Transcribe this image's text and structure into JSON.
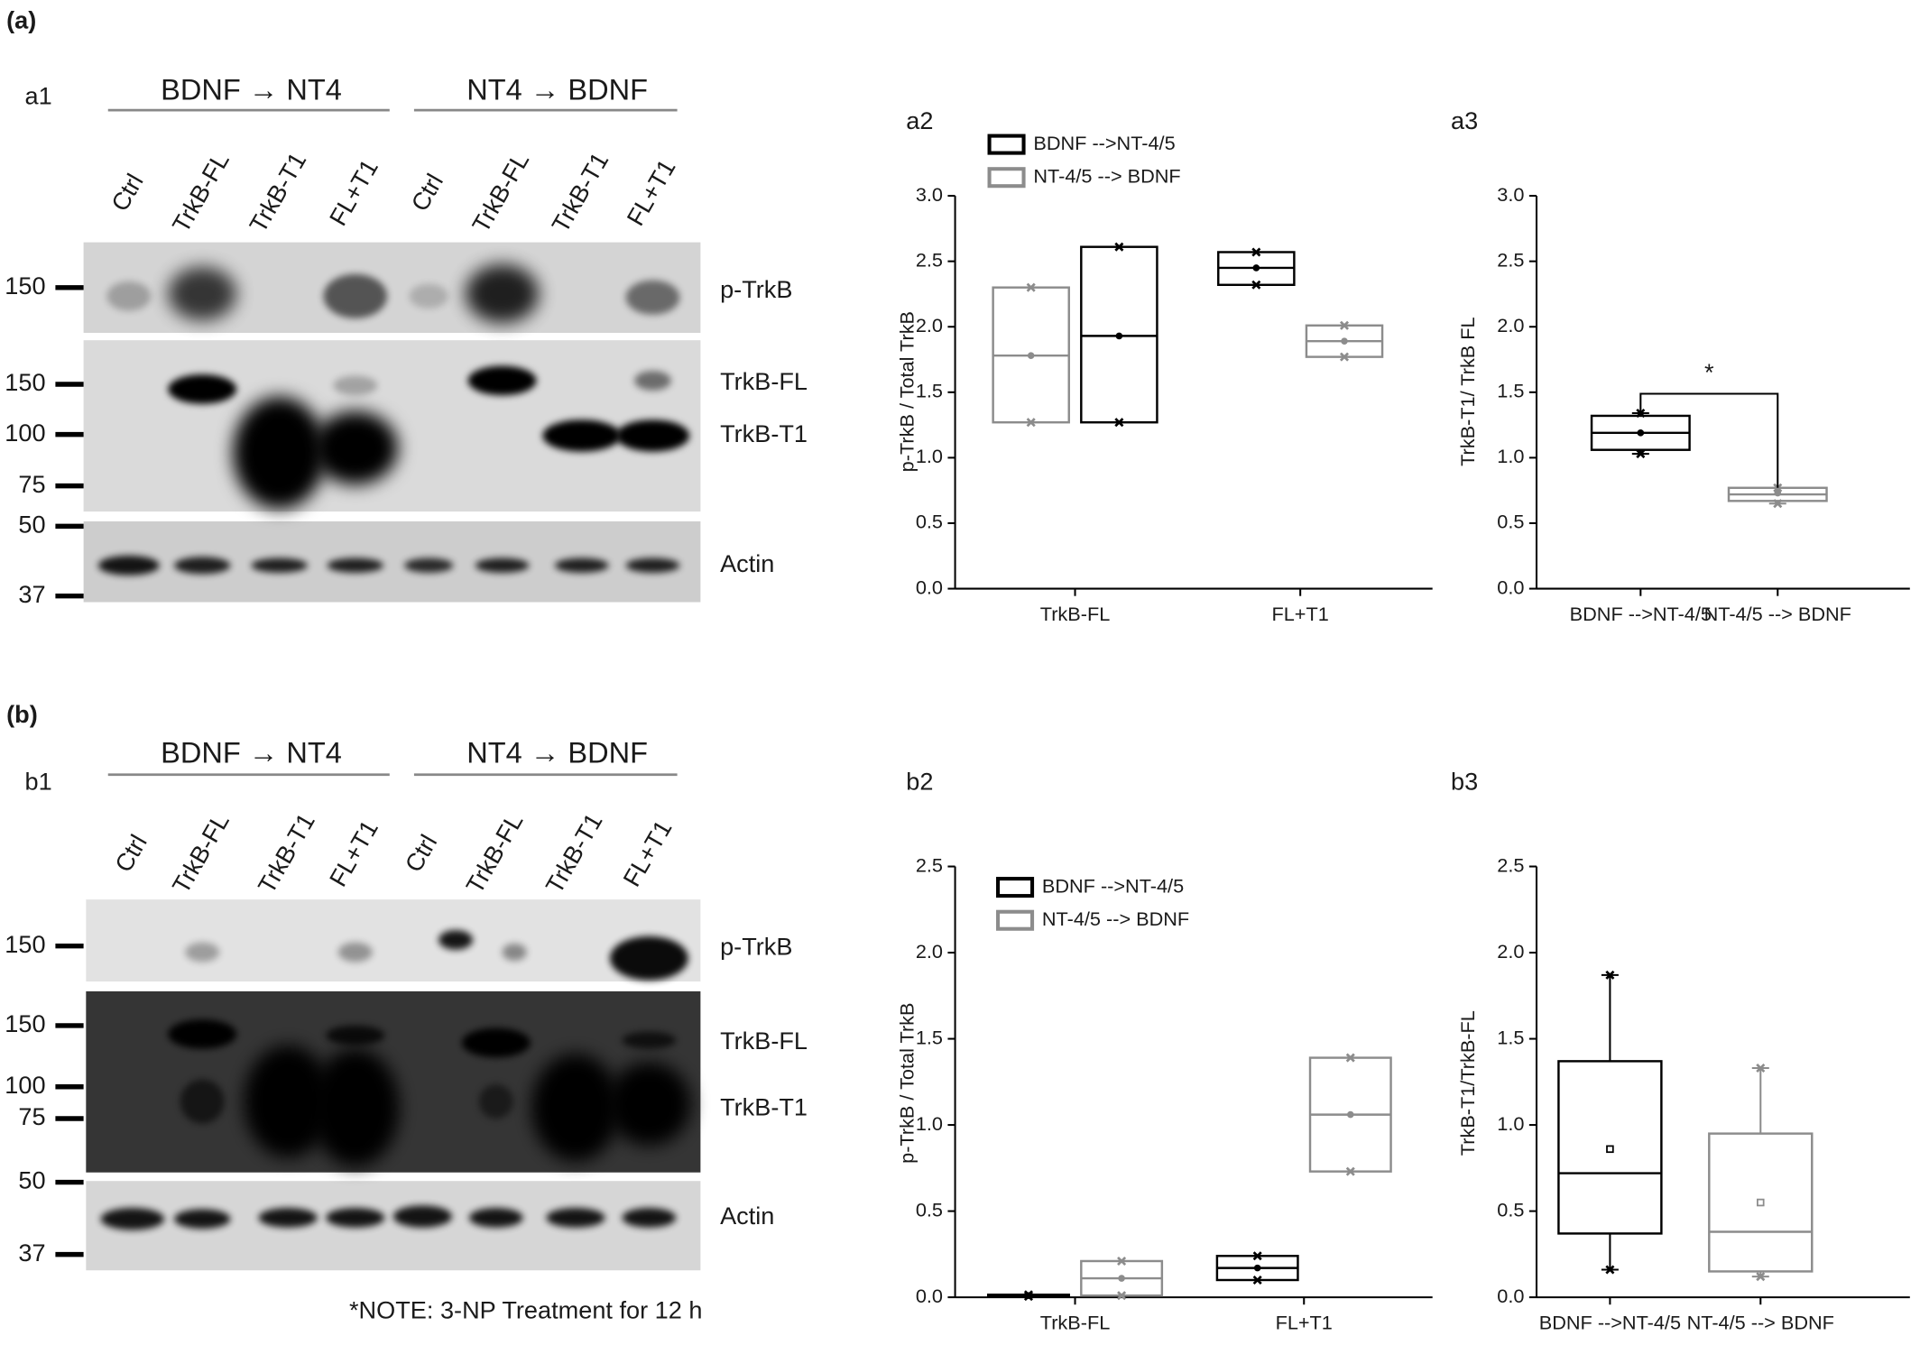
{
  "figure": {
    "panels": [
      {
        "label": "(a)",
        "blot": {
          "label": "a1",
          "groups": [
            "BDNF → NT4",
            "NT4 → BDNF"
          ],
          "lanes": [
            "Ctrl",
            "TrkB-FL",
            "TrkB-T1",
            "FL+T1",
            "Ctrl",
            "TrkB-FL",
            "TrkB-T1",
            "FL+T1"
          ],
          "bands": [
            "p-TrkB",
            "TrkB-FL",
            "TrkB-T1",
            "Actin"
          ],
          "markers": [
            150,
            150,
            100,
            75,
            50,
            37
          ]
        }
      },
      {
        "label": "(b)",
        "blot": {
          "label": "b1",
          "groups": [
            "BDNF → NT4",
            "NT4 → BDNF"
          ],
          "lanes": [
            "Ctrl",
            "TrkB-FL",
            "TrkB-T1",
            "FL+T1",
            "Ctrl",
            "TrkB-FL",
            "TrkB-T1",
            "FL+T1"
          ],
          "bands": [
            "p-TrkB",
            "TrkB-FL",
            "TrkB-T1",
            "Actin"
          ],
          "markers": [
            150,
            150,
            100,
            75,
            50,
            37
          ],
          "note": "*NOTE: 3-NP Treatment for 12 h"
        }
      }
    ]
  },
  "chart_data": [
    {
      "type": "box",
      "panel": "a2",
      "ylabel": "p-TrkB / Total TrkB",
      "categories": [
        "TrkB-FL",
        "FL+T1"
      ],
      "ylim": [
        0,
        3
      ],
      "yticks": [
        {
          "value": 0,
          "label": "0.0"
        },
        0.5,
        {
          "value": 1,
          "label": "1.0"
        },
        1.5,
        {
          "value": 2,
          "label": "2.0"
        },
        2.5,
        {
          "value": 3,
          "label": "3.0"
        }
      ],
      "mean_marker": "dot",
      "series": [
        {
          "name": "BDNF -->NT-4/5",
          "color": "#000000",
          "stats": [
            {
              "min": 1.27,
              "q1": 1.27,
              "median": 1.93,
              "q3": 2.61,
              "max": 2.61,
              "mean": 1.93
            },
            {
              "min": 2.32,
              "q1": 2.32,
              "median": 2.45,
              "q3": 2.57,
              "max": 2.57,
              "mean": 2.45
            }
          ]
        },
        {
          "name": "NT-4/5 --> BDNF",
          "color": "#8c8c8c",
          "stats": [
            {
              "min": 1.27,
              "q1": 1.27,
              "median": 1.78,
              "q3": 2.3,
              "max": 2.3,
              "mean": 1.78
            },
            {
              "min": 1.77,
              "q1": 1.77,
              "median": 1.89,
              "q3": 2.01,
              "max": 2.01,
              "mean": 1.89
            }
          ]
        }
      ]
    },
    {
      "type": "box",
      "panel": "a3",
      "ylabel": "TrkB-T1/ TrkB FL",
      "categories": [
        "BDNF -->NT-4/5",
        "NT-4/5 --> BDNF"
      ],
      "ylim": [
        0,
        3
      ],
      "yticks": [
        {
          "value": 0,
          "label": "0.0"
        },
        0.5,
        {
          "value": 1,
          "label": "1.0"
        },
        1.5,
        {
          "value": 2,
          "label": "2.0"
        },
        2.5,
        {
          "value": 3,
          "label": "3.0"
        }
      ],
      "mean_marker": "dot",
      "annotation": "*",
      "series": [
        {
          "colors": [
            "#000000",
            "#8c8c8c"
          ],
          "stats": [
            {
              "min": 1.03,
              "q1": 1.06,
              "median": 1.19,
              "q3": 1.32,
              "max": 1.34,
              "mean": 1.19
            },
            {
              "min": 0.65,
              "q1": 0.67,
              "median": 0.72,
              "q3": 0.77,
              "max": 0.77,
              "mean": 0.73
            }
          ]
        }
      ]
    },
    {
      "type": "box",
      "panel": "b2",
      "ylabel": "p-TrkB / Total TrkB",
      "categories": [
        "TrkB-FL",
        "FL+T1"
      ],
      "ylim": [
        0,
        2.5
      ],
      "yticks": [
        {
          "value": 0,
          "label": "0.0"
        },
        0.5,
        {
          "value": 1,
          "label": "1.0"
        },
        1.5,
        {
          "value": 2,
          "label": "2.0"
        },
        2.5
      ],
      "mean_marker": "dot",
      "series": [
        {
          "name": "BDNF -->NT-4/5",
          "color": "#000000",
          "stats": [
            {
              "min": 0.005,
              "q1": 0.005,
              "median": 0.01,
              "q3": 0.015,
              "max": 0.015,
              "mean": 0.01
            },
            {
              "min": 0.1,
              "q1": 0.1,
              "median": 0.17,
              "q3": 0.24,
              "max": 0.24,
              "mean": 0.17
            }
          ]
        },
        {
          "name": "NT-4/5 --> BDNF",
          "color": "#8c8c8c",
          "stats": [
            {
              "min": 0.01,
              "q1": 0.01,
              "median": 0.11,
              "q3": 0.21,
              "max": 0.21,
              "mean": 0.11
            },
            {
              "min": 0.73,
              "q1": 0.73,
              "median": 1.06,
              "q3": 1.39,
              "max": 1.39,
              "mean": 1.06
            }
          ]
        }
      ]
    },
    {
      "type": "box",
      "panel": "b3",
      "ylabel": "TrkB-T1/TrkB-FL",
      "categories": [
        "BDNF -->NT-4/5",
        "NT-4/5 --> BDNF"
      ],
      "ylim": [
        0,
        2.5
      ],
      "yticks": [
        {
          "value": 0,
          "label": "0.0"
        },
        0.5,
        {
          "value": 1,
          "label": "1.0"
        },
        1.5,
        {
          "value": 2,
          "label": "2.0"
        },
        2.5
      ],
      "mean_marker": "square",
      "series": [
        {
          "colors": [
            "#000000",
            "#8c8c8c"
          ],
          "stats": [
            {
              "min": 0.16,
              "q1": 0.37,
              "median": 0.72,
              "q3": 1.37,
              "max": 1.87,
              "mean": 0.86
            },
            {
              "min": 0.12,
              "q1": 0.15,
              "median": 0.38,
              "q3": 0.95,
              "max": 1.33,
              "mean": 0.55
            }
          ]
        }
      ]
    }
  ]
}
